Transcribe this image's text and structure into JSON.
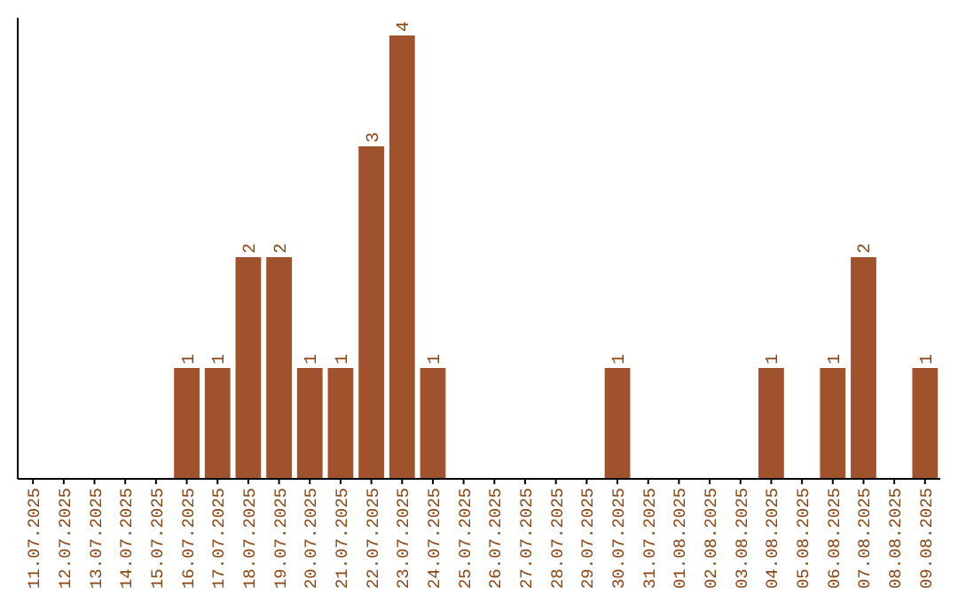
{
  "chart_data": {
    "type": "bar",
    "categories": [
      "11.07.2025",
      "12.07.2025",
      "13.07.2025",
      "14.07.2025",
      "15.07.2025",
      "16.07.2025",
      "17.07.2025",
      "18.07.2025",
      "19.07.2025",
      "20.07.2025",
      "21.07.2025",
      "22.07.2025",
      "23.07.2025",
      "24.07.2025",
      "25.07.2025",
      "26.07.2025",
      "27.07.2025",
      "28.07.2025",
      "29.07.2025",
      "30.07.2025",
      "31.07.2025",
      "01.08.2025",
      "02.08.2025",
      "03.08.2025",
      "04.08.2025",
      "05.08.2025",
      "06.08.2025",
      "07.08.2025",
      "08.08.2025",
      "09.08.2025"
    ],
    "values": [
      0,
      0,
      0,
      0,
      0,
      1,
      1,
      2,
      2,
      1,
      1,
      3,
      4,
      1,
      0,
      0,
      0,
      0,
      0,
      1,
      0,
      0,
      0,
      0,
      1,
      0,
      1,
      2,
      0,
      1
    ],
    "value_labels": [
      null,
      null,
      null,
      null,
      null,
      "1",
      "1",
      "2",
      "2",
      "1",
      "1",
      "3",
      "4",
      "1",
      null,
      null,
      null,
      null,
      null,
      "1",
      null,
      null,
      null,
      null,
      "1",
      null,
      "1",
      "2",
      null,
      "1"
    ],
    "color": "#a0522d"
  }
}
